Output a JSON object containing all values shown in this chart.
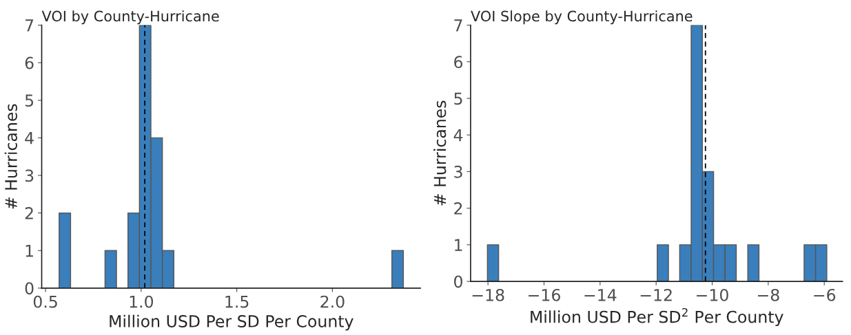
{
  "chart_data": [
    {
      "type": "histogram",
      "title": "VOI by County-Hurricane",
      "xlabel": "Million USD Per SD Per County",
      "ylabel": "# Hurricanes",
      "bins": [
        0.571,
        0.631,
        0.691,
        0.751,
        0.811,
        0.871,
        0.931,
        0.991,
        1.051,
        1.111,
        1.171,
        1.231,
        1.291,
        1.351,
        1.411,
        1.471,
        1.531,
        1.591,
        1.651,
        1.711,
        1.771,
        1.831,
        1.891,
        1.951,
        2.011,
        2.071,
        2.131,
        2.191,
        2.251,
        2.311,
        2.371
      ],
      "values": [
        2,
        0,
        0,
        0,
        1,
        0,
        2,
        7,
        4,
        1,
        0,
        0,
        0,
        0,
        0,
        0,
        0,
        0,
        0,
        0,
        0,
        0,
        0,
        0,
        0,
        0,
        0,
        0,
        0,
        1
      ],
      "color": "#3a7ebb",
      "xlim": [
        0.48,
        2.46
      ],
      "xticks": [
        {
          "value": 0.5,
          "label": "0.5"
        },
        {
          "value": 1.0,
          "label": "1.0"
        },
        {
          "value": 1.5,
          "label": "1.5"
        },
        {
          "value": 2.0,
          "label": "2.0"
        }
      ],
      "ylim": [
        0,
        7
      ],
      "yticks": [
        0,
        1,
        2,
        3,
        4,
        5,
        6,
        7
      ],
      "grid": false,
      "ref_lines": [
        {
          "axis": "x",
          "value": 1.019,
          "color": "#000000",
          "line_style": "dashed"
        }
      ]
    },
    {
      "type": "histogram",
      "title": "VOI Slope by County-Hurricane",
      "xlabel": "Million USD Per SD$^{2}$ Per County",
      "ylabel": "# Hurricanes",
      "bins": [
        -18.02,
        -17.62,
        -17.21,
        -16.81,
        -16.41,
        -16.0,
        -15.6,
        -15.19,
        -14.79,
        -14.39,
        -13.98,
        -13.58,
        -13.18,
        -12.77,
        -12.37,
        -11.96,
        -11.56,
        -11.16,
        -10.75,
        -10.35,
        -9.95,
        -9.54,
        -9.14,
        -8.73,
        -8.33,
        -7.93,
        -7.52,
        -7.12,
        -6.72,
        -6.31,
        -5.91
      ],
      "values": [
        1,
        0,
        0,
        0,
        0,
        0,
        0,
        0,
        0,
        0,
        0,
        0,
        0,
        0,
        0,
        1,
        0,
        1,
        7,
        3,
        1,
        1,
        0,
        1,
        0,
        0,
        0,
        0,
        1,
        1
      ],
      "color": "#3a7ebb",
      "xlim": [
        -18.62,
        -5.35
      ],
      "xticks": [
        -18,
        -16,
        -14,
        -12,
        -10,
        -8,
        -6
      ],
      "ylim": [
        0,
        7
      ],
      "yticks": [
        0,
        1,
        2,
        3,
        4,
        5,
        6,
        7
      ],
      "grid": false,
      "ref_lines": [
        {
          "axis": "x",
          "value": -10.24,
          "color": "#000000",
          "line_style": "dashed"
        }
      ]
    }
  ]
}
